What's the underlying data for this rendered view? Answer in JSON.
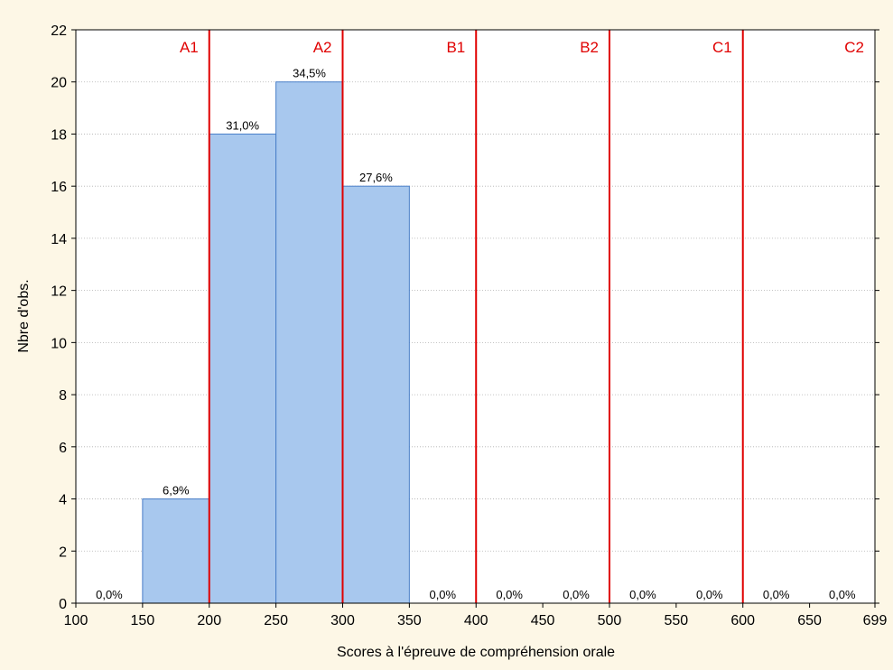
{
  "chart_data": {
    "type": "bar",
    "title": "",
    "xlabel": "Scores à l'épreuve de compréhension orale",
    "ylabel": "Nbre d'obs.",
    "xlim": [
      100,
      699
    ],
    "ylim": [
      0,
      22
    ],
    "x_ticks": [
      "100",
      "150",
      "200",
      "250",
      "300",
      "350",
      "400",
      "450",
      "500",
      "550",
      "600",
      "650",
      "699"
    ],
    "y_ticks": [
      "0",
      "2",
      "4",
      "6",
      "8",
      "10",
      "12",
      "14",
      "16",
      "18",
      "20",
      "22"
    ],
    "grid": "horizontal dotted",
    "bins": [
      {
        "x_start": 100,
        "x_end": 150,
        "value": 0,
        "label": "0,0%"
      },
      {
        "x_start": 150,
        "x_end": 200,
        "value": 4,
        "label": "6,9%"
      },
      {
        "x_start": 200,
        "x_end": 250,
        "value": 18,
        "label": "31,0%"
      },
      {
        "x_start": 250,
        "x_end": 300,
        "value": 20,
        "label": "34,5%"
      },
      {
        "x_start": 300,
        "x_end": 350,
        "value": 16,
        "label": "27,6%"
      },
      {
        "x_start": 350,
        "x_end": 400,
        "value": 0,
        "label": "0,0%"
      },
      {
        "x_start": 400,
        "x_end": 450,
        "value": 0,
        "label": "0,0%"
      },
      {
        "x_start": 450,
        "x_end": 500,
        "value": 0,
        "label": "0,0%"
      },
      {
        "x_start": 500,
        "x_end": 550,
        "value": 0,
        "label": "0,0%"
      },
      {
        "x_start": 550,
        "x_end": 600,
        "value": 0,
        "label": "0,0%"
      },
      {
        "x_start": 600,
        "x_end": 650,
        "value": 0,
        "label": "0,0%"
      },
      {
        "x_start": 650,
        "x_end": 699,
        "value": 0,
        "label": "0,0%"
      }
    ],
    "reference_lines": [
      200,
      300,
      400,
      500,
      600
    ],
    "level_labels": [
      {
        "label": "A1",
        "x_start": 100,
        "x_end": 200
      },
      {
        "label": "A2",
        "x_start": 200,
        "x_end": 300
      },
      {
        "label": "B1",
        "x_start": 300,
        "x_end": 400
      },
      {
        "label": "B2",
        "x_start": 400,
        "x_end": 500
      },
      {
        "label": "C1",
        "x_start": 500,
        "x_end": 600
      },
      {
        "label": "C2",
        "x_start": 600,
        "x_end": 699
      }
    ],
    "colors": {
      "background": "#fdf7e6",
      "plot_background": "#ffffff",
      "bar_fill": "#a8c8ee",
      "bar_stroke": "#4a7fc8",
      "reference_line": "#e00000",
      "level_label": "#e00000",
      "grid": "#b0b0b0",
      "text": "#000000"
    }
  }
}
